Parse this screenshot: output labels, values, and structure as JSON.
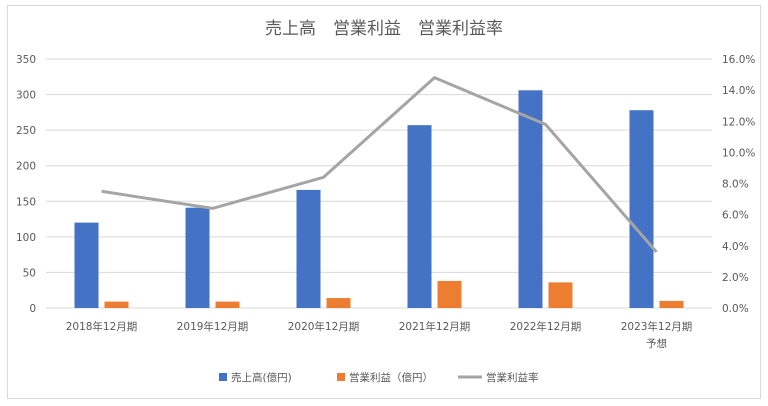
{
  "chart_data": {
    "type": "bar",
    "title": "売上高　営業利益　営業利益率",
    "categories": [
      [
        "2018年12月期"
      ],
      [
        "2019年12月期"
      ],
      [
        "2020年12月期"
      ],
      [
        "2021年12月期"
      ],
      [
        "2022年12月期"
      ],
      [
        "2023年12月期",
        "予想"
      ]
    ],
    "series": [
      {
        "name": "売上高(億円)",
        "type": "bar",
        "axis": "left",
        "color": "#4472C4",
        "values": [
          120,
          141,
          166,
          257,
          306,
          278
        ]
      },
      {
        "name": "営業利益（億円）",
        "type": "bar",
        "axis": "left",
        "color": "#ED7D31",
        "values": [
          9,
          9,
          14,
          38,
          36,
          10
        ]
      },
      {
        "name": "営業利益率",
        "type": "line",
        "axis": "right",
        "color": "#A5A5A5",
        "values": [
          7.5,
          6.4,
          8.4,
          14.8,
          11.8,
          3.6
        ]
      }
    ],
    "y_left": {
      "min": 0,
      "max": 350,
      "step": 50,
      "ticks": [
        "0",
        "50",
        "100",
        "150",
        "200",
        "250",
        "300",
        "350"
      ]
    },
    "y_right": {
      "min": 0,
      "max": 16,
      "step": 2,
      "ticks": [
        "0.0%",
        "2.0%",
        "4.0%",
        "6.0%",
        "8.0%",
        "10.0%",
        "12.0%",
        "14.0%",
        "16.0%"
      ]
    },
    "grid": true,
    "legend_position": "bottom"
  }
}
